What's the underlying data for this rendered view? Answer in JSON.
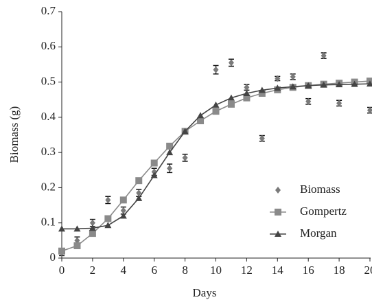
{
  "chart_data": {
    "type": "line",
    "xlabel": "Days",
    "ylabel": "Biomass (g)",
    "x": [
      0,
      1,
      2,
      3,
      4,
      5,
      6,
      7,
      8,
      9,
      10,
      11,
      12,
      13,
      14,
      15,
      16,
      17,
      18,
      19,
      20
    ],
    "series": [
      {
        "name": "Biomass",
        "color": "#7a7a7a",
        "marker": "diamond",
        "line": false,
        "error_color": "#111111",
        "values": [
          0.015,
          0.05,
          0.1,
          0.165,
          0.135,
          0.185,
          0.245,
          0.255,
          0.285,
          0.39,
          0.535,
          0.555,
          0.485,
          0.34,
          0.51,
          0.515,
          0.445,
          0.575,
          0.44,
          0.5,
          0.42
        ],
        "errors": [
          0.008,
          0.01,
          0.01,
          0.01,
          0.01,
          0.01,
          0.01,
          0.012,
          0.01,
          0.008,
          0.012,
          0.01,
          0.008,
          0.008,
          0.006,
          0.008,
          0.008,
          0.008,
          0.008,
          0.006,
          0.008
        ]
      },
      {
        "name": "Gompertz",
        "color": "#8a8a8a",
        "marker": "square",
        "line": true,
        "values": [
          0.02,
          0.035,
          0.07,
          0.112,
          0.165,
          0.22,
          0.27,
          0.318,
          0.36,
          0.39,
          0.417,
          0.437,
          0.455,
          0.468,
          0.478,
          0.485,
          0.49,
          0.494,
          0.497,
          0.5,
          0.503
        ]
      },
      {
        "name": "Morgan",
        "color": "#444444",
        "marker": "triangle",
        "line": true,
        "values": [
          0.083,
          0.083,
          0.085,
          0.093,
          0.12,
          0.17,
          0.235,
          0.3,
          0.36,
          0.405,
          0.435,
          0.455,
          0.468,
          0.477,
          0.483,
          0.487,
          0.49,
          0.492,
          0.493,
          0.494,
          0.495
        ]
      }
    ],
    "xlim": [
      0,
      20
    ],
    "ylim": [
      0,
      0.7
    ],
    "xticks": [
      0,
      2,
      4,
      6,
      8,
      10,
      12,
      14,
      16,
      18,
      20
    ],
    "yticks": [
      0,
      0.1,
      0.2,
      0.3,
      0.4,
      0.5,
      0.6,
      0.7
    ],
    "legend": "lower right"
  }
}
